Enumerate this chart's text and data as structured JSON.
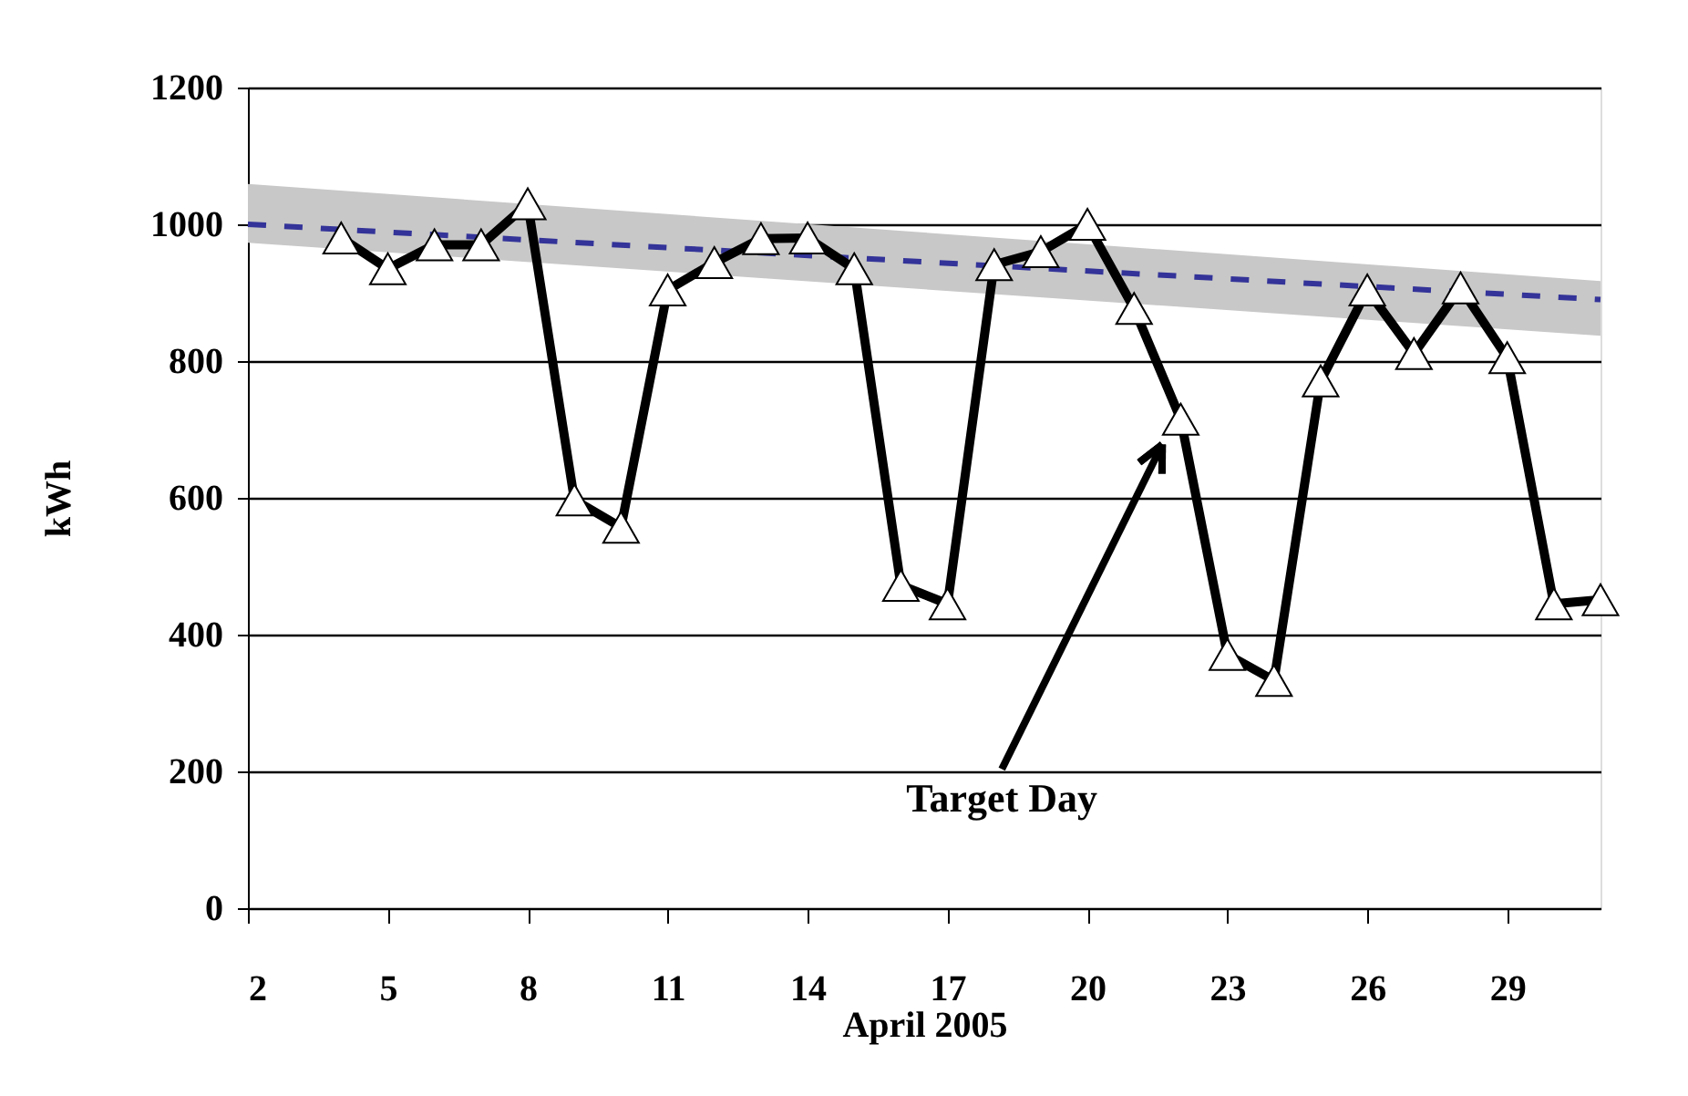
{
  "chart_data": {
    "type": "line",
    "xlabel": "April 2005",
    "ylabel": "kWh",
    "xlim": [
      2,
      31
    ],
    "xticks": [
      2,
      5,
      8,
      11,
      14,
      17,
      20,
      23,
      26,
      29
    ],
    "ylim": [
      0,
      1200
    ],
    "yticks": [
      0,
      200,
      400,
      600,
      800,
      1000,
      1200
    ],
    "grid": "y",
    "marker": "triangle",
    "series": [
      {
        "color": "#000000",
        "x": [
          4,
          5,
          6,
          7,
          8,
          9,
          10,
          11,
          12,
          13,
          14,
          15,
          16,
          17,
          18,
          19,
          20,
          21,
          22,
          23,
          24,
          25,
          26,
          27,
          28,
          29,
          30,
          31
        ],
        "values": [
          980,
          935,
          970,
          970,
          1030,
          597,
          557,
          904,
          944,
          979,
          980,
          935,
          472,
          445,
          941,
          960,
          1000,
          877,
          715,
          371,
          333,
          771,
          904,
          811,
          907,
          805,
          445,
          451
        ],
        "line_style": "solid"
      },
      {
        "color": "#333399",
        "x": [
          2,
          31
        ],
        "values": [
          1000,
          890
        ],
        "lower": [
          973,
          837
        ],
        "upper": [
          1059,
          917
        ],
        "line_style": "dashed",
        "marker": "none"
      }
    ],
    "annotations": [
      "Target Day"
    ]
  }
}
